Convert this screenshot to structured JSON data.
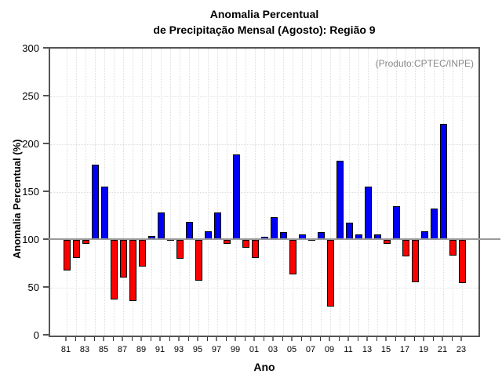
{
  "header": {
    "title_line1": "Anomalia Percentual",
    "title_line2": "de Precipitação Mensal (Agosto): Região 9"
  },
  "annotation": {
    "source": "(Produto:CPTEC/INPE)"
  },
  "chart_data": {
    "type": "bar",
    "title": "Anomalia Percentual de Precipitação Mensal (Agosto): Região 9",
    "xlabel": "Ano",
    "ylabel": "Anomalia Percentual (%)",
    "ylim": [
      0,
      300
    ],
    "yticks": [
      0,
      50,
      100,
      150,
      200,
      250,
      300
    ],
    "baseline": 100,
    "grid": {
      "horizontal": "dotted every 50",
      "vertical": "dotted every year"
    },
    "legend_position": "none",
    "colors": {
      "above_baseline": "#0000f5",
      "below_baseline": "#fb0200",
      "baseline_line": "#9a9a9a",
      "grid_line": "#dddddd",
      "box_border": "#555555"
    },
    "xtick_labeled_years": [
      "81",
      "83",
      "85",
      "87",
      "89",
      "91",
      "93",
      "95",
      "97",
      "99",
      "01",
      "03",
      "05",
      "07",
      "09",
      "11",
      "13",
      "15",
      "17",
      "19",
      "21",
      "23"
    ],
    "categories": [
      "81",
      "82",
      "83",
      "84",
      "85",
      "86",
      "87",
      "88",
      "89",
      "90",
      "91",
      "92",
      "93",
      "94",
      "95",
      "96",
      "97",
      "98",
      "99",
      "00",
      "01",
      "02",
      "03",
      "04",
      "05",
      "06",
      "07",
      "08",
      "09",
      "10",
      "11",
      "12",
      "13",
      "14",
      "15",
      "16",
      "17",
      "18",
      "19",
      "20",
      "21",
      "22",
      "23"
    ],
    "values": [
      68,
      81,
      96,
      179,
      156,
      38,
      61,
      36,
      72,
      104,
      129,
      101,
      80,
      119,
      57,
      109,
      129,
      96,
      189,
      92,
      81,
      103,
      124,
      108,
      64,
      106,
      101,
      108,
      30,
      183,
      118,
      106,
      156,
      106,
      96,
      135,
      83,
      56,
      109,
      133,
      221,
      84,
      55
    ]
  }
}
